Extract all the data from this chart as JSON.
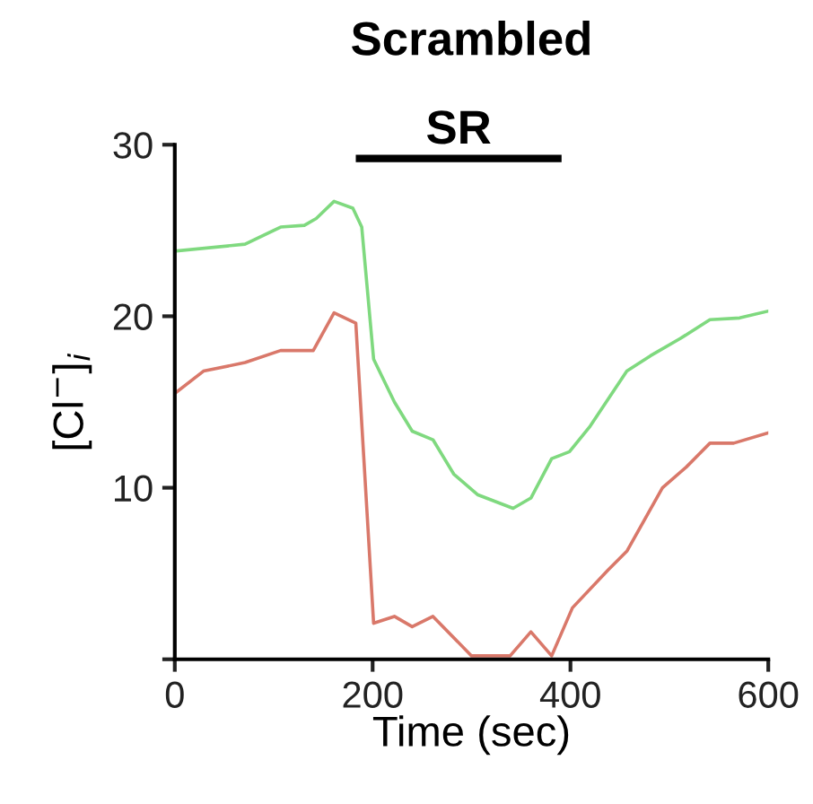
{
  "chart_data": {
    "type": "line",
    "title": "Scrambled",
    "xlabel": "Time (sec)",
    "ylabel": "[Cl$^{−}$]$_{i}$",
    "xlim": [
      0,
      600
    ],
    "xticks": [
      0,
      200,
      400,
      600
    ],
    "ylim": [
      0,
      30
    ],
    "yticks": [
      {
        "value": 0,
        "label": null
      },
      10,
      20,
      30
    ],
    "grid": false,
    "legend": false,
    "marker": "none",
    "line_style": "solid",
    "series": [
      {
        "name": "SR",
        "color": "#000000",
        "x": [
          183,
          391
        ],
        "values": [
          29.2,
          29.2
        ],
        "line_style": "solid"
      },
      {
        "color": "#7fd97f",
        "x": [
          0,
          71,
          107,
          131,
          143,
          161,
          180,
          189,
          201,
          222,
          240,
          261,
          282,
          306,
          342,
          360,
          381,
          399,
          420,
          457,
          481,
          511,
          541,
          571,
          600
        ],
        "values": [
          23.8,
          24.2,
          25.2,
          25.3,
          25.7,
          26.7,
          26.3,
          25.2,
          17.5,
          15.0,
          13.3,
          12.8,
          10.8,
          9.6,
          8.8,
          9.4,
          11.7,
          12.1,
          13.6,
          16.8,
          17.7,
          18.7,
          19.8,
          19.9,
          20.3
        ]
      },
      {
        "color": "#d9786a",
        "x": [
          0,
          29,
          71,
          107,
          140,
          161,
          183,
          201,
          222,
          240,
          261,
          300,
          339,
          360,
          381,
          402,
          438,
          457,
          493,
          517,
          541,
          565,
          600
        ],
        "values": [
          15.5,
          16.8,
          17.3,
          18.0,
          18.0,
          20.2,
          19.6,
          2.1,
          2.5,
          1.9,
          2.5,
          0.2,
          0.2,
          1.6,
          0.2,
          3.0,
          5.2,
          6.3,
          10.0,
          11.2,
          12.6,
          12.6,
          13.2
        ]
      }
    ]
  }
}
